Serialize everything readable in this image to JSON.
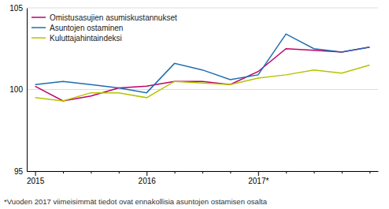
{
  "chart_data": {
    "type": "line",
    "categories": [
      "2015",
      null,
      null,
      null,
      "2016",
      null,
      null,
      null,
      "2017*",
      null,
      null,
      null,
      null
    ],
    "series": [
      {
        "name": "Omistusasujien asumiskustannukset",
        "color": "#C0006A",
        "values": [
          100.2,
          99.3,
          99.6,
          100.1,
          100.2,
          100.5,
          100.5,
          100.3,
          101.1,
          102.5,
          102.4,
          102.3,
          102.6
        ]
      },
      {
        "name": "Asuntojen ostaminen",
        "color": "#1F6CB0",
        "values": [
          100.3,
          100.5,
          100.3,
          100.1,
          99.8,
          101.6,
          101.2,
          100.6,
          100.9,
          103.4,
          102.5,
          102.3,
          102.6
        ]
      },
      {
        "name": "Kuluttajahintaindeksi",
        "color": "#B5C400",
        "values": [
          99.5,
          99.3,
          99.8,
          99.8,
          99.5,
          100.5,
          100.4,
          100.3,
          100.7,
          100.9,
          101.2,
          101.0,
          101.5
        ]
      }
    ],
    "ylim": [
      95,
      105
    ],
    "yticks": [
      95,
      100,
      105
    ],
    "grid": true,
    "legend": "upper left",
    "annotations": [
      "*Vuoden 2017 viimeisimmät tiedot ovat ennakollisia asuntojen ostamisen osalta"
    ]
  }
}
